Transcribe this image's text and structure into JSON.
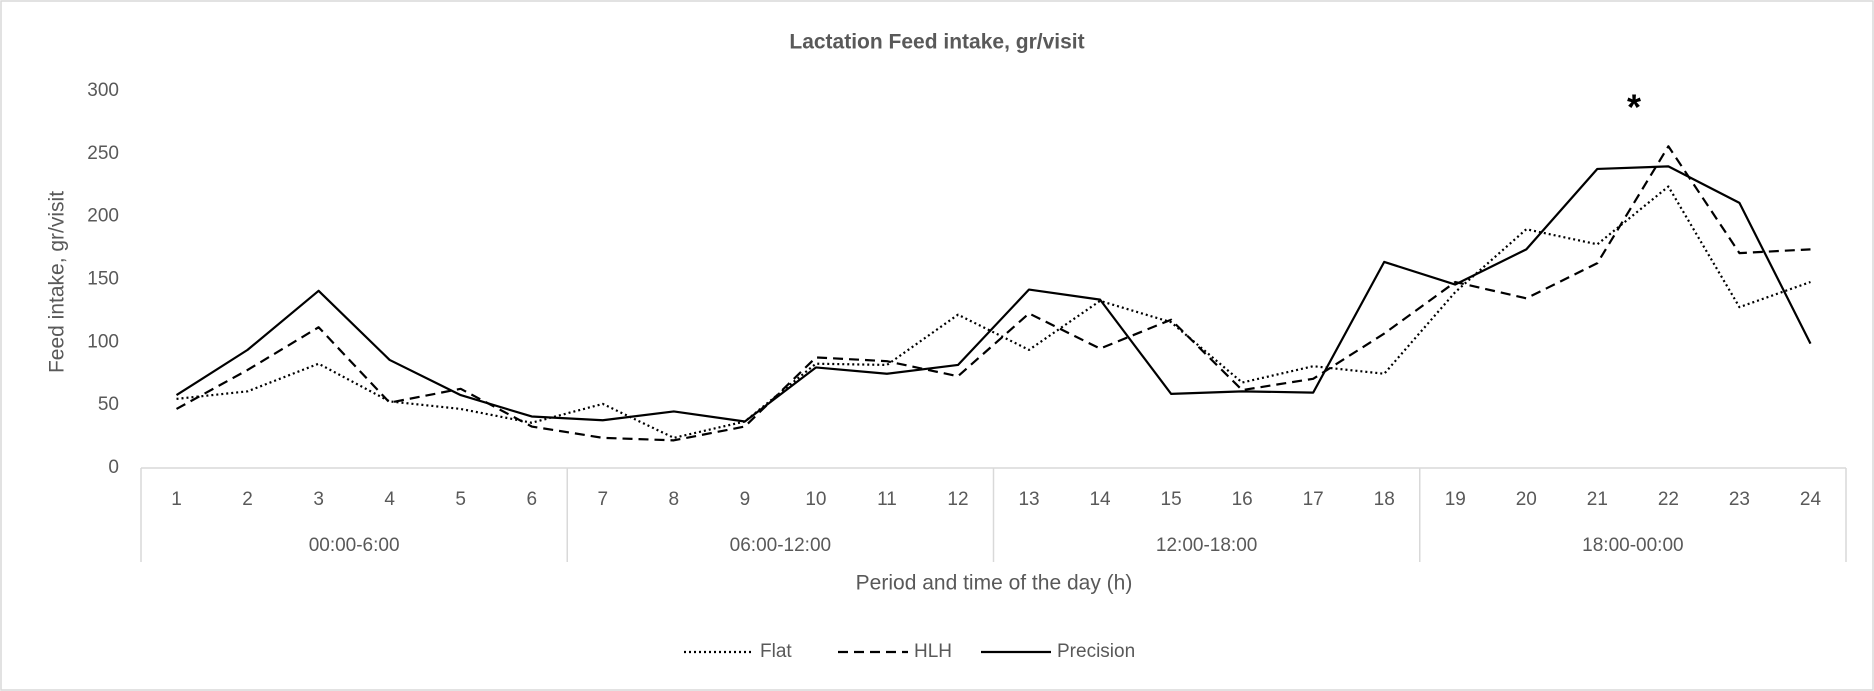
{
  "chart_data": {
    "type": "line",
    "title": "Lactation Feed intake, gr/visit",
    "y_label": "Feed intake, gr/visit",
    "x_label": "Period and time of the day (h)",
    "annotation": "*",
    "categories": [
      "1",
      "2",
      "3",
      "4",
      "5",
      "6",
      "7",
      "8",
      "9",
      "10",
      "11",
      "12",
      "13",
      "14",
      "15",
      "16",
      "17",
      "18",
      "19",
      "20",
      "21",
      "22",
      "23",
      "24"
    ],
    "category_groups": [
      "00:00-6:00",
      "06:00-12:00",
      "12:00-18:00",
      "18:00-00:00"
    ],
    "ylim": [
      0,
      300
    ],
    "yticks": [
      0,
      50,
      100,
      150,
      200,
      250,
      300
    ],
    "grid": false,
    "legend": "bottom",
    "series": [
      {
        "name": "Flat",
        "color": "#000000",
        "line_style": "dotted",
        "values": [
          55,
          61,
          83,
          53,
          47,
          36,
          51,
          24,
          37,
          83,
          82,
          122,
          94,
          133,
          116,
          68,
          81,
          75,
          140,
          190,
          178,
          224,
          128,
          148
        ]
      },
      {
        "name": "HLH",
        "color": "#000000",
        "line_style": "dashed",
        "values": [
          47,
          78,
          112,
          52,
          63,
          33,
          24,
          22,
          33,
          88,
          85,
          73,
          123,
          95,
          118,
          62,
          71,
          107,
          148,
          135,
          163,
          256,
          171,
          174
        ]
      },
      {
        "name": "Precision",
        "color": "#000000",
        "line_style": "solid",
        "values": [
          58,
          94,
          141,
          86,
          58,
          41,
          38,
          45,
          37,
          80,
          75,
          82,
          142,
          134,
          59,
          61,
          60,
          164,
          146,
          174,
          238,
          240,
          211,
          99
        ]
      }
    ]
  }
}
